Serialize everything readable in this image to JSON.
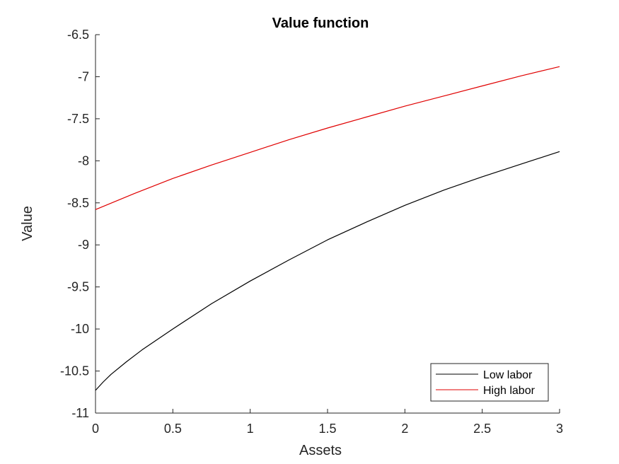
{
  "chart_data": {
    "type": "line",
    "title": "Value function",
    "xlabel": "Assets",
    "ylabel": "Value",
    "xlim": [
      0,
      3
    ],
    "ylim": [
      -11,
      -6.5
    ],
    "x_ticks": [
      "0",
      "0.5",
      "1",
      "1.5",
      "2",
      "2.5",
      "3"
    ],
    "y_ticks": [
      "-6.5",
      "-7",
      "-7.5",
      "-8",
      "-8.5",
      "-9",
      "-9.5",
      "-10",
      "-10.5",
      "-11"
    ],
    "grid": false,
    "legend_position": "bottom-right",
    "series": [
      {
        "name": "Low labor",
        "color": "#000000",
        "x": [
          0,
          0.05,
          0.1,
          0.2,
          0.3,
          0.5,
          0.75,
          1,
          1.25,
          1.5,
          1.75,
          2,
          2.25,
          2.5,
          2.75,
          3
        ],
        "y": [
          -10.73,
          -10.63,
          -10.54,
          -10.39,
          -10.25,
          -10.0,
          -9.7,
          -9.43,
          -9.18,
          -8.94,
          -8.73,
          -8.53,
          -8.35,
          -8.19,
          -8.04,
          -7.89
        ]
      },
      {
        "name": "High labor",
        "color": "#e00000",
        "x": [
          0,
          0.25,
          0.5,
          0.75,
          1,
          1.25,
          1.5,
          1.75,
          2,
          2.25,
          2.5,
          2.75,
          3
        ],
        "y": [
          -8.58,
          -8.39,
          -8.21,
          -8.05,
          -7.9,
          -7.75,
          -7.61,
          -7.48,
          -7.35,
          -7.23,
          -7.11,
          -6.99,
          -6.88
        ]
      }
    ]
  }
}
